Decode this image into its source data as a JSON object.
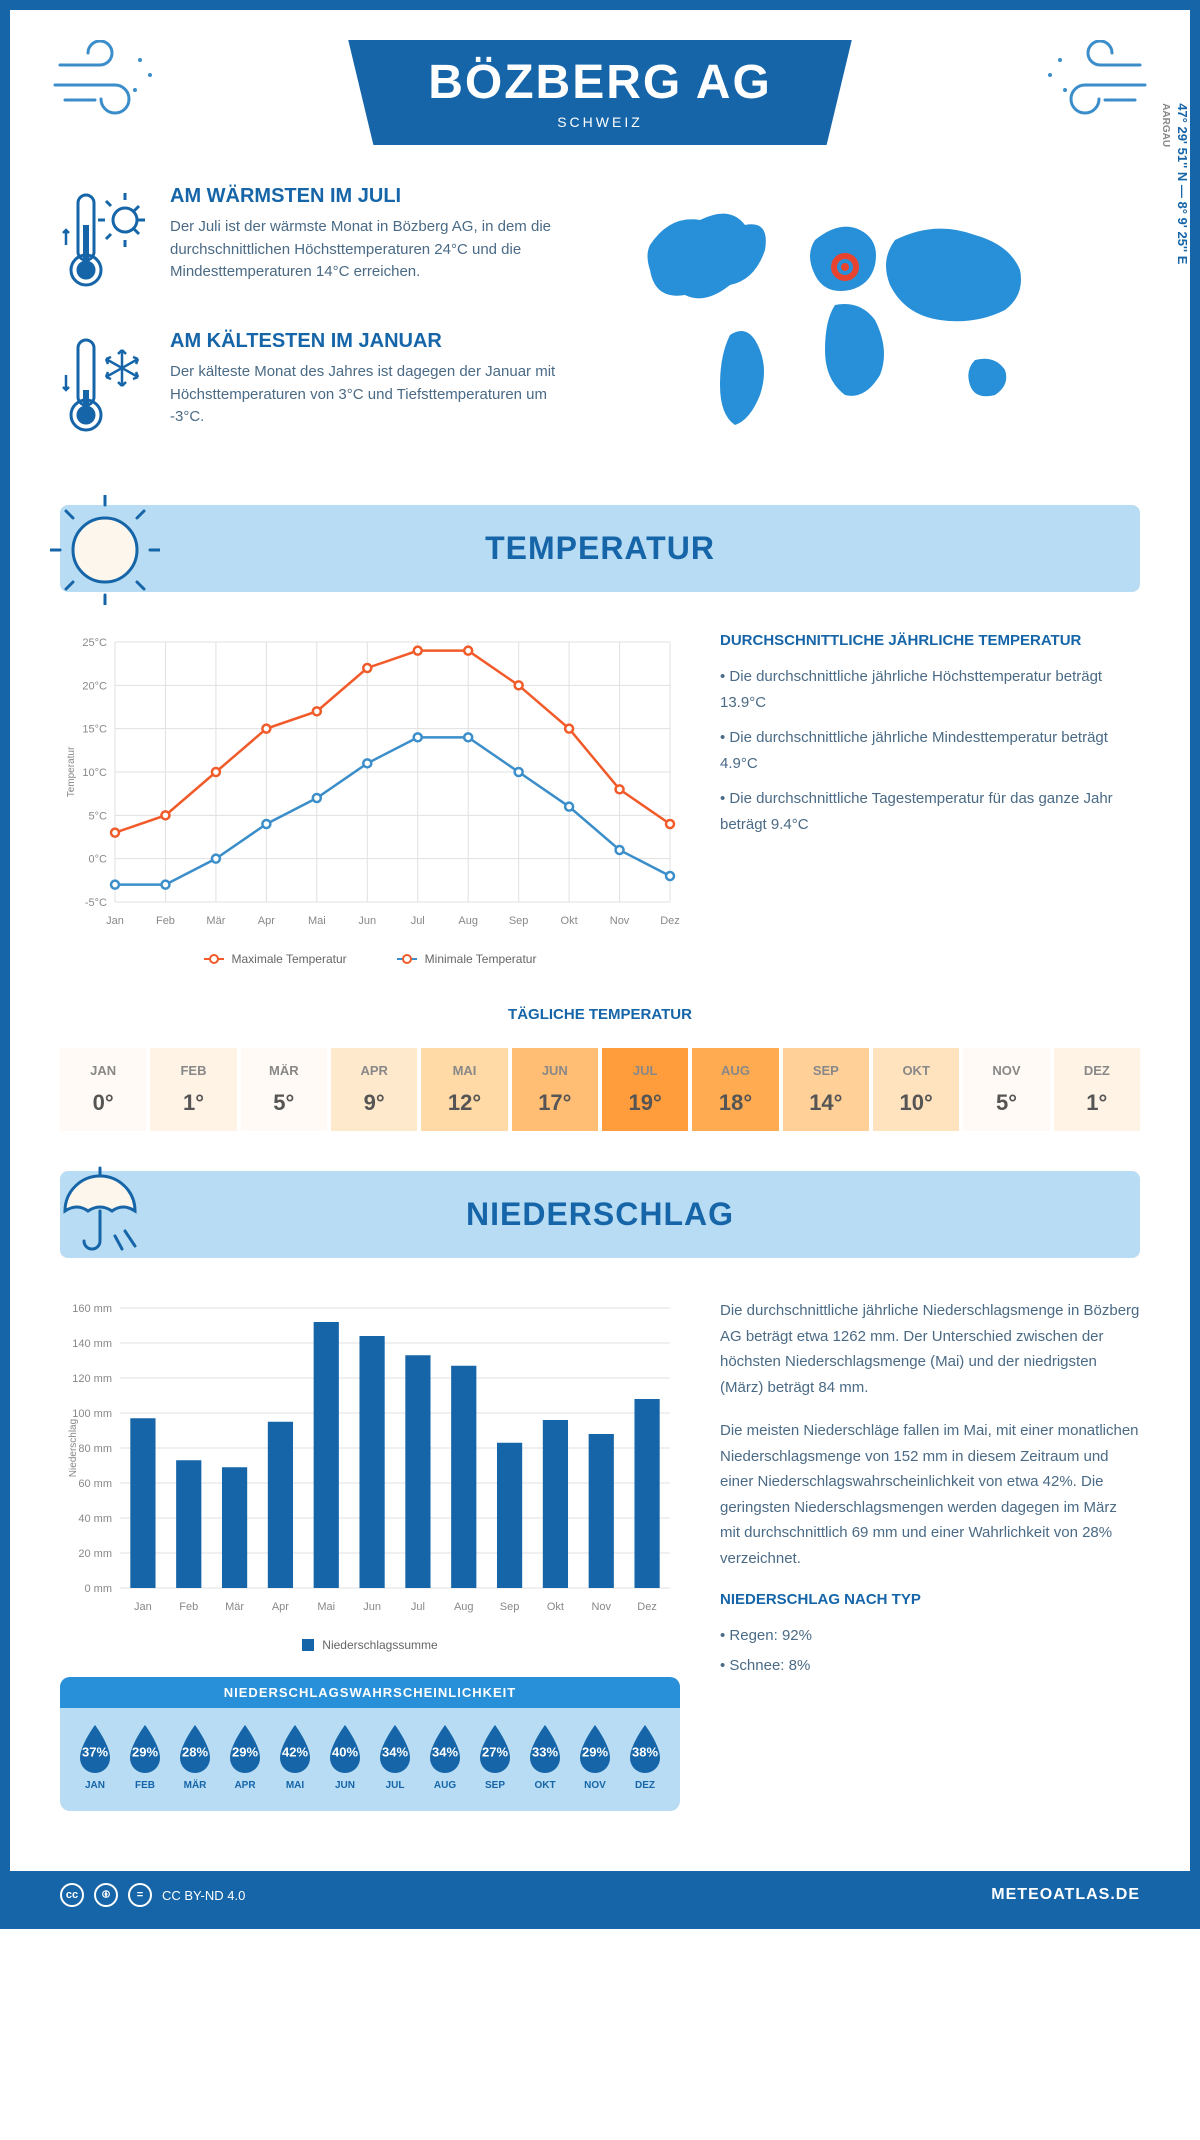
{
  "header": {
    "title": "BÖZBERG AG",
    "subtitle": "SCHWEIZ"
  },
  "location": {
    "coords": "47° 29' 51'' N — 8° 9' 25'' E",
    "region": "AARGAU"
  },
  "warmest": {
    "heading": "AM WÄRMSTEN IM JULI",
    "text": "Der Juli ist der wärmste Monat in Bözberg AG, in dem die durchschnittlichen Höchsttemperaturen 24°C und die Mindesttemperaturen 14°C erreichen."
  },
  "coldest": {
    "heading": "AM KÄLTESTEN IM JANUAR",
    "text": "Der kälteste Monat des Jahres ist dagegen der Januar mit Höchsttemperaturen von 3°C und Tiefsttemperaturen um -3°C."
  },
  "temperature_section": {
    "title": "TEMPERATUR",
    "chart": {
      "months": [
        "Jan",
        "Feb",
        "Mär",
        "Apr",
        "Mai",
        "Jun",
        "Jul",
        "Aug",
        "Sep",
        "Okt",
        "Nov",
        "Dez"
      ],
      "max_series": [
        3,
        5,
        10,
        15,
        17,
        22,
        24,
        24,
        20,
        15,
        8,
        4
      ],
      "min_series": [
        -3,
        -3,
        0,
        4,
        7,
        11,
        14,
        14,
        10,
        6,
        1,
        -2
      ],
      "max_color": "#f15a29",
      "min_color": "#3b8ec9",
      "ylabel": "Temperatur",
      "ylim": [
        -5,
        25
      ],
      "ytick_step": 5,
      "grid_color": "#e0e0e0",
      "legend_max": "Maximale Temperatur",
      "legend_min": "Minimale Temperatur"
    },
    "stats": {
      "heading": "DURCHSCHNITTLICHE JÄHRLICHE TEMPERATUR",
      "items": [
        "• Die durchschnittliche jährliche Höchsttemperatur beträgt 13.9°C",
        "• Die durchschnittliche jährliche Mindesttemperatur beträgt 4.9°C",
        "• Die durchschnittliche Tagestemperatur für das ganze Jahr beträgt 9.4°C"
      ]
    },
    "daily": {
      "heading": "TÄGLICHE TEMPERATUR",
      "months": [
        "JAN",
        "FEB",
        "MÄR",
        "APR",
        "MAI",
        "JUN",
        "JUL",
        "AUG",
        "SEP",
        "OKT",
        "NOV",
        "DEZ"
      ],
      "values": [
        "0°",
        "1°",
        "5°",
        "9°",
        "12°",
        "17°",
        "19°",
        "18°",
        "14°",
        "10°",
        "5°",
        "1°"
      ],
      "cell_colors": [
        "#fffaf5",
        "#fff3e6",
        "#fffaf5",
        "#ffe9cc",
        "#ffd9a6",
        "#ffbe73",
        "#ff9d3d",
        "#ffab52",
        "#ffd199",
        "#ffe3bf",
        "#fffaf5",
        "#fff3e6"
      ]
    }
  },
  "precipitation_section": {
    "title": "NIEDERSCHLAG",
    "chart": {
      "months": [
        "Jan",
        "Feb",
        "Mär",
        "Apr",
        "Mai",
        "Jun",
        "Jul",
        "Aug",
        "Sep",
        "Okt",
        "Nov",
        "Dez"
      ],
      "values": [
        97,
        73,
        69,
        95,
        152,
        144,
        133,
        127,
        83,
        96,
        88,
        108
      ],
      "ylabel": "Niederschlag",
      "ylim": [
        0,
        160
      ],
      "ytick_step": 20,
      "bar_color": "#1565a8",
      "grid_color": "#e0e0e0",
      "legend": "Niederschlagssumme"
    },
    "text": [
      "Die durchschnittliche jährliche Niederschlagsmenge in Bözberg AG beträgt etwa 1262 mm. Der Unterschied zwischen der höchsten Niederschlagsmenge (Mai) und der niedrigsten (März) beträgt 84 mm.",
      "Die meisten Niederschläge fallen im Mai, mit einer monatlichen Niederschlagsmenge von 152 mm in diesem Zeitraum und einer Niederschlagswahrscheinlichkeit von etwa 42%. Die geringsten Niederschlagsmengen werden dagegen im März mit durchschnittlich 69 mm und einer Wahrlichkeit von 28% verzeichnet."
    ],
    "by_type": {
      "heading": "NIEDERSCHLAG NACH TYP",
      "items": [
        "• Regen: 92%",
        "• Schnee: 8%"
      ]
    },
    "probability": {
      "heading": "NIEDERSCHLAGSWAHRSCHEINLICHKEIT",
      "months": [
        "JAN",
        "FEB",
        "MÄR",
        "APR",
        "MAI",
        "JUN",
        "JUL",
        "AUG",
        "SEP",
        "OKT",
        "NOV",
        "DEZ"
      ],
      "values": [
        "37%",
        "29%",
        "28%",
        "29%",
        "42%",
        "40%",
        "34%",
        "34%",
        "27%",
        "33%",
        "29%",
        "38%"
      ],
      "drop_color": "#1565a8"
    }
  },
  "footer": {
    "license": "CC BY-ND 4.0",
    "site": "METEOATLAS.DE"
  }
}
